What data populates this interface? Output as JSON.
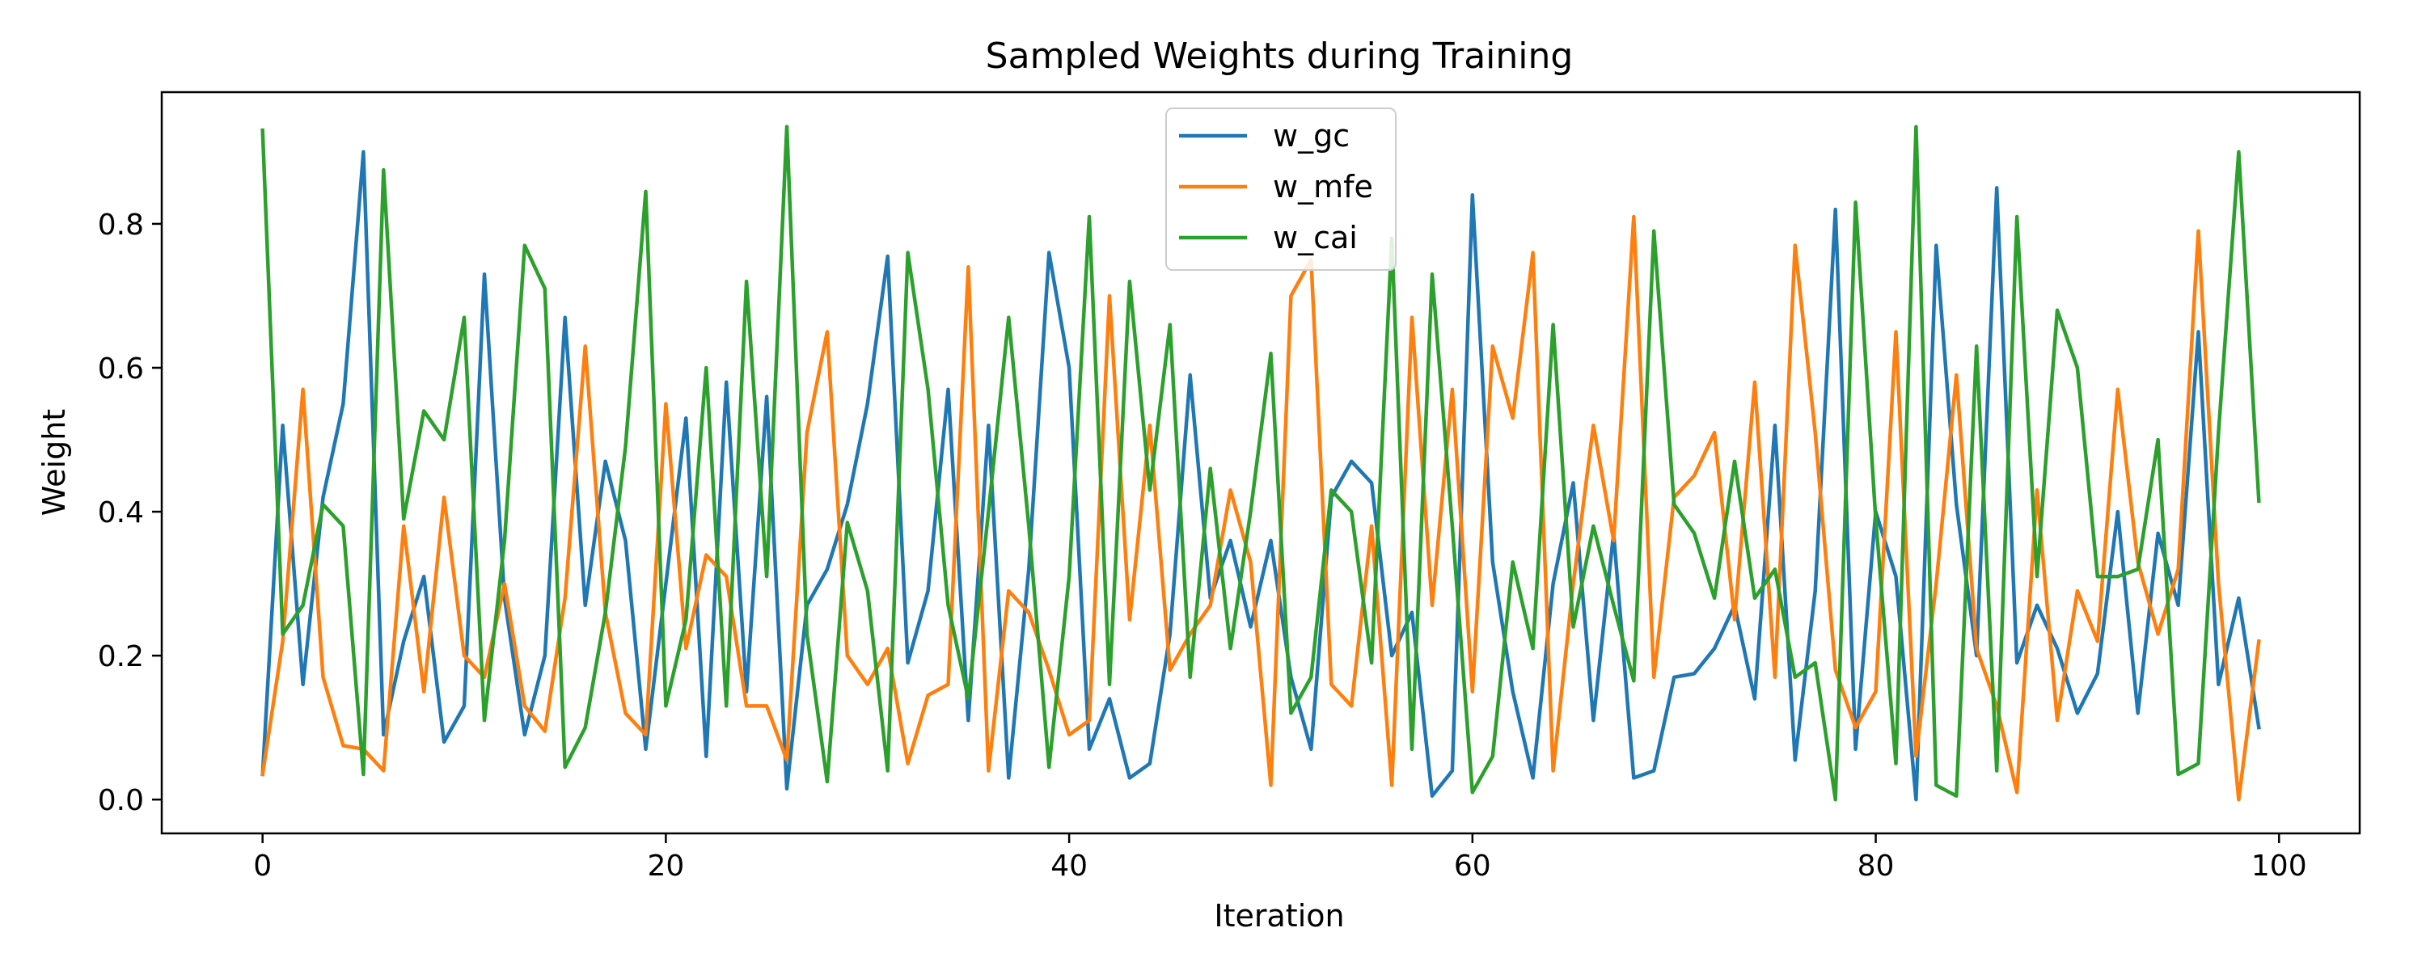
{
  "chart_data": {
    "type": "line",
    "title": "Sampled Weights during Training",
    "xlabel": "Iteration",
    "ylabel": "Weight",
    "xlim": [
      -5,
      104
    ],
    "ylim": [
      -0.047,
      0.983
    ],
    "xticks": [
      0,
      20,
      40,
      60,
      80,
      100
    ],
    "yticks": [
      0.0,
      0.2,
      0.4,
      0.6,
      0.8
    ],
    "xtick_labels": [
      "0",
      "20",
      "40",
      "60",
      "80",
      "100"
    ],
    "ytick_labels": [
      "0.0",
      "0.2",
      "0.4",
      "0.6",
      "0.8"
    ],
    "grid": false,
    "legend_position": "top-center",
    "x": [
      0,
      1,
      2,
      3,
      4,
      5,
      6,
      7,
      8,
      9,
      10,
      11,
      12,
      13,
      14,
      15,
      16,
      17,
      18,
      19,
      20,
      21,
      22,
      23,
      24,
      25,
      26,
      27,
      28,
      29,
      30,
      31,
      32,
      33,
      34,
      35,
      36,
      37,
      38,
      39,
      40,
      41,
      42,
      43,
      44,
      45,
      46,
      47,
      48,
      49,
      50,
      51,
      52,
      53,
      54,
      55,
      56,
      57,
      58,
      59,
      60,
      61,
      62,
      63,
      64,
      65,
      66,
      67,
      68,
      69,
      70,
      71,
      72,
      73,
      74,
      75,
      76,
      77,
      78,
      79,
      80,
      81,
      82,
      83,
      84,
      85,
      86,
      87,
      88,
      89,
      90,
      91,
      92,
      93,
      94,
      95,
      96,
      97,
      98,
      99
    ],
    "series": [
      {
        "name": "w_gc",
        "color": "#1f77b4",
        "values": [
          0.035,
          0.52,
          0.16,
          0.42,
          0.55,
          0.9,
          0.09,
          0.22,
          0.31,
          0.08,
          0.13,
          0.73,
          0.28,
          0.09,
          0.2,
          0.67,
          0.27,
          0.47,
          0.36,
          0.07,
          0.3,
          0.53,
          0.06,
          0.58,
          0.15,
          0.56,
          0.015,
          0.27,
          0.32,
          0.41,
          0.55,
          0.755,
          0.19,
          0.29,
          0.57,
          0.11,
          0.52,
          0.03,
          0.32,
          0.76,
          0.6,
          0.07,
          0.14,
          0.03,
          0.05,
          0.23,
          0.59,
          0.28,
          0.36,
          0.24,
          0.36,
          0.17,
          0.07,
          0.42,
          0.47,
          0.44,
          0.2,
          0.26,
          0.005,
          0.04,
          0.84,
          0.33,
          0.15,
          0.03,
          0.3,
          0.44,
          0.11,
          0.37,
          0.03,
          0.04,
          0.17,
          0.175,
          0.21,
          0.27,
          0.14,
          0.52,
          0.055,
          0.29,
          0.82,
          0.07,
          0.4,
          0.31,
          0.0,
          0.77,
          0.41,
          0.2,
          0.85,
          0.19,
          0.27,
          0.21,
          0.12,
          0.175,
          0.4,
          0.12,
          0.37,
          0.27,
          0.65,
          0.16,
          0.28,
          0.1
        ]
      },
      {
        "name": "w_mfe",
        "color": "#ff7f0e",
        "values": [
          0.035,
          0.22,
          0.57,
          0.17,
          0.075,
          0.07,
          0.04,
          0.38,
          0.15,
          0.42,
          0.2,
          0.17,
          0.3,
          0.13,
          0.095,
          0.28,
          0.63,
          0.26,
          0.12,
          0.09,
          0.55,
          0.21,
          0.34,
          0.31,
          0.13,
          0.13,
          0.055,
          0.51,
          0.65,
          0.2,
          0.16,
          0.21,
          0.05,
          0.145,
          0.16,
          0.74,
          0.04,
          0.29,
          0.26,
          0.18,
          0.09,
          0.11,
          0.7,
          0.25,
          0.52,
          0.18,
          0.23,
          0.27,
          0.43,
          0.33,
          0.02,
          0.7,
          0.75,
          0.16,
          0.13,
          0.38,
          0.02,
          0.67,
          0.27,
          0.57,
          0.15,
          0.63,
          0.53,
          0.76,
          0.04,
          0.3,
          0.52,
          0.36,
          0.81,
          0.17,
          0.42,
          0.45,
          0.51,
          0.25,
          0.58,
          0.17,
          0.77,
          0.51,
          0.18,
          0.1,
          0.15,
          0.65,
          0.06,
          0.3,
          0.59,
          0.21,
          0.13,
          0.01,
          0.43,
          0.11,
          0.29,
          0.22,
          0.57,
          0.33,
          0.23,
          0.32,
          0.79,
          0.3,
          0.0,
          0.22
        ]
      },
      {
        "name": "w_cai",
        "color": "#2ca02c",
        "values": [
          0.93,
          0.23,
          0.27,
          0.41,
          0.38,
          0.035,
          0.875,
          0.39,
          0.54,
          0.5,
          0.67,
          0.11,
          0.36,
          0.77,
          0.71,
          0.045,
          0.1,
          0.26,
          0.49,
          0.845,
          0.13,
          0.25,
          0.6,
          0.13,
          0.72,
          0.31,
          0.935,
          0.23,
          0.025,
          0.385,
          0.29,
          0.04,
          0.76,
          0.57,
          0.27,
          0.14,
          0.4,
          0.67,
          0.38,
          0.045,
          0.31,
          0.81,
          0.16,
          0.72,
          0.43,
          0.66,
          0.17,
          0.46,
          0.21,
          0.4,
          0.62,
          0.12,
          0.17,
          0.43,
          0.4,
          0.19,
          0.78,
          0.07,
          0.73,
          0.38,
          0.01,
          0.06,
          0.33,
          0.21,
          0.66,
          0.24,
          0.38,
          0.27,
          0.165,
          0.79,
          0.41,
          0.37,
          0.28,
          0.47,
          0.28,
          0.32,
          0.17,
          0.19,
          0.0,
          0.83,
          0.39,
          0.05,
          0.935,
          0.02,
          0.005,
          0.63,
          0.04,
          0.81,
          0.31,
          0.68,
          0.6,
          0.31,
          0.31,
          0.32,
          0.5,
          0.035,
          0.05,
          0.51,
          0.9,
          0.415
        ]
      }
    ]
  }
}
